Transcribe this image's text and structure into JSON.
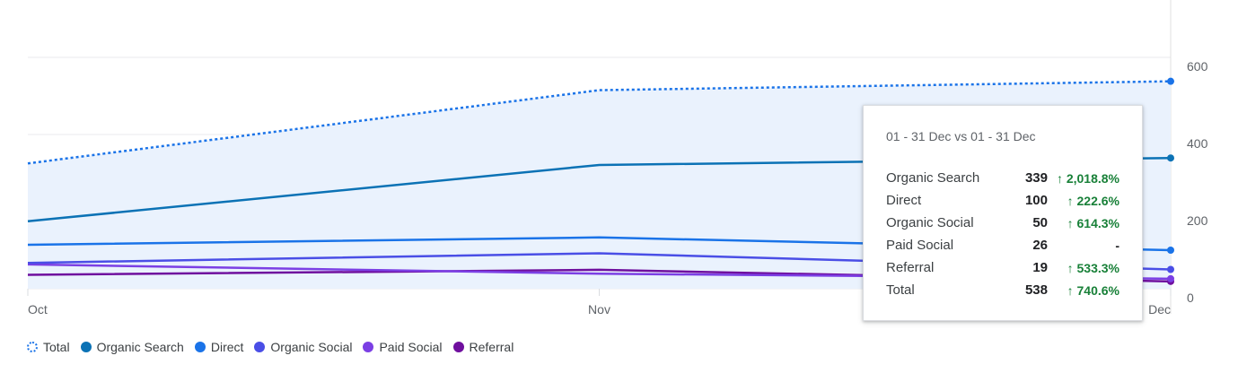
{
  "chart_data": {
    "type": "line",
    "categories": [
      "Oct",
      "Nov",
      "Dec"
    ],
    "ylim": [
      0,
      600
    ],
    "yticks": [
      0,
      200,
      400,
      600
    ],
    "grid": true,
    "legend_position": "bottom-left",
    "series": [
      {
        "name": "Total",
        "values": [
          325,
          515,
          538
        ],
        "color": "#1a73e8",
        "style": "dotted",
        "fill": "#eaf2fd"
      },
      {
        "name": "Organic Search",
        "values": [
          175,
          321,
          339
        ],
        "color": "#0b72b5",
        "style": "solid"
      },
      {
        "name": "Direct",
        "values": [
          114,
          133,
          100
        ],
        "color": "#1a73e8",
        "style": "solid"
      },
      {
        "name": "Organic Social",
        "values": [
          67,
          92,
          50
        ],
        "color": "#4a4ee6",
        "style": "solid"
      },
      {
        "name": "Paid Social",
        "values": [
          63,
          39,
          26
        ],
        "color": "#7b3fe4",
        "style": "solid"
      },
      {
        "name": "Referral",
        "values": [
          36,
          49,
          19
        ],
        "color": "#6f0f9e",
        "style": "solid"
      }
    ]
  },
  "tooltip": {
    "title": "01 - 31 Dec vs 01 - 31 Dec",
    "rows": [
      {
        "name": "Organic Search",
        "value": "339",
        "change": "↑ 2,018.8%",
        "positive": true
      },
      {
        "name": "Direct",
        "value": "100",
        "change": "↑ 222.6%",
        "positive": true
      },
      {
        "name": "Organic Social",
        "value": "50",
        "change": "↑ 614.3%",
        "positive": true
      },
      {
        "name": "Paid Social",
        "value": "26",
        "change": "-",
        "positive": false
      },
      {
        "name": "Referral",
        "value": "19",
        "change": "↑ 533.3%",
        "positive": true
      },
      {
        "name": "Total",
        "value": "538",
        "change": "↑ 740.6%",
        "positive": true
      }
    ]
  }
}
